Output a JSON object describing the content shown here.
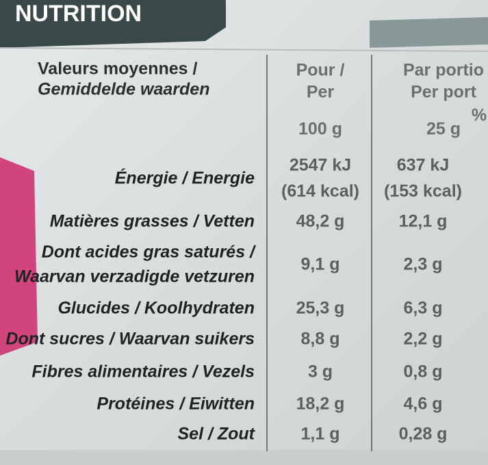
{
  "header": {
    "title": "NUTRITION"
  },
  "table": {
    "head": {
      "label": [
        "Valeurs moyennes /",
        "Gemiddelde waarden"
      ],
      "per100": [
        "Pour /",
        "Per",
        "100 g"
      ],
      "portion": [
        "Par portio",
        "Per port",
        "25 g"
      ],
      "percent": "%"
    },
    "rows": [
      {
        "label": [
          "Énergie / Energie"
        ],
        "per100": [
          "2547 kJ",
          "(614 kcal)"
        ],
        "portion": [
          "637 kJ",
          "(153 kcal)"
        ]
      },
      {
        "label": [
          "Matières grasses / Vetten"
        ],
        "per100": [
          "48,2 g"
        ],
        "portion": [
          "12,1 g"
        ]
      },
      {
        "label": [
          "Dont acides gras saturés /",
          "Waarvan verzadigde vetzuren"
        ],
        "per100": [
          "9,1 g"
        ],
        "portion": [
          "2,3 g"
        ]
      },
      {
        "label": [
          "Glucides / Koolhydraten"
        ],
        "per100": [
          "25,3 g"
        ],
        "portion": [
          "6,3 g"
        ]
      },
      {
        "label": [
          "Dont sucres / Waarvan suikers"
        ],
        "per100": [
          "8,8 g"
        ],
        "portion": [
          "2,2 g"
        ]
      },
      {
        "label": [
          "Fibres alimentaires / Vezels"
        ],
        "per100": [
          "3 g"
        ],
        "portion": [
          "0,8 g"
        ]
      },
      {
        "label": [
          "Protéines / Eiwitten"
        ],
        "per100": [
          "18,2 g"
        ],
        "portion": [
          "4,6 g"
        ]
      },
      {
        "label": [
          "Sel / Zout"
        ],
        "per100": [
          "1,1 g"
        ],
        "portion": [
          "0,28 g"
        ]
      }
    ]
  }
}
